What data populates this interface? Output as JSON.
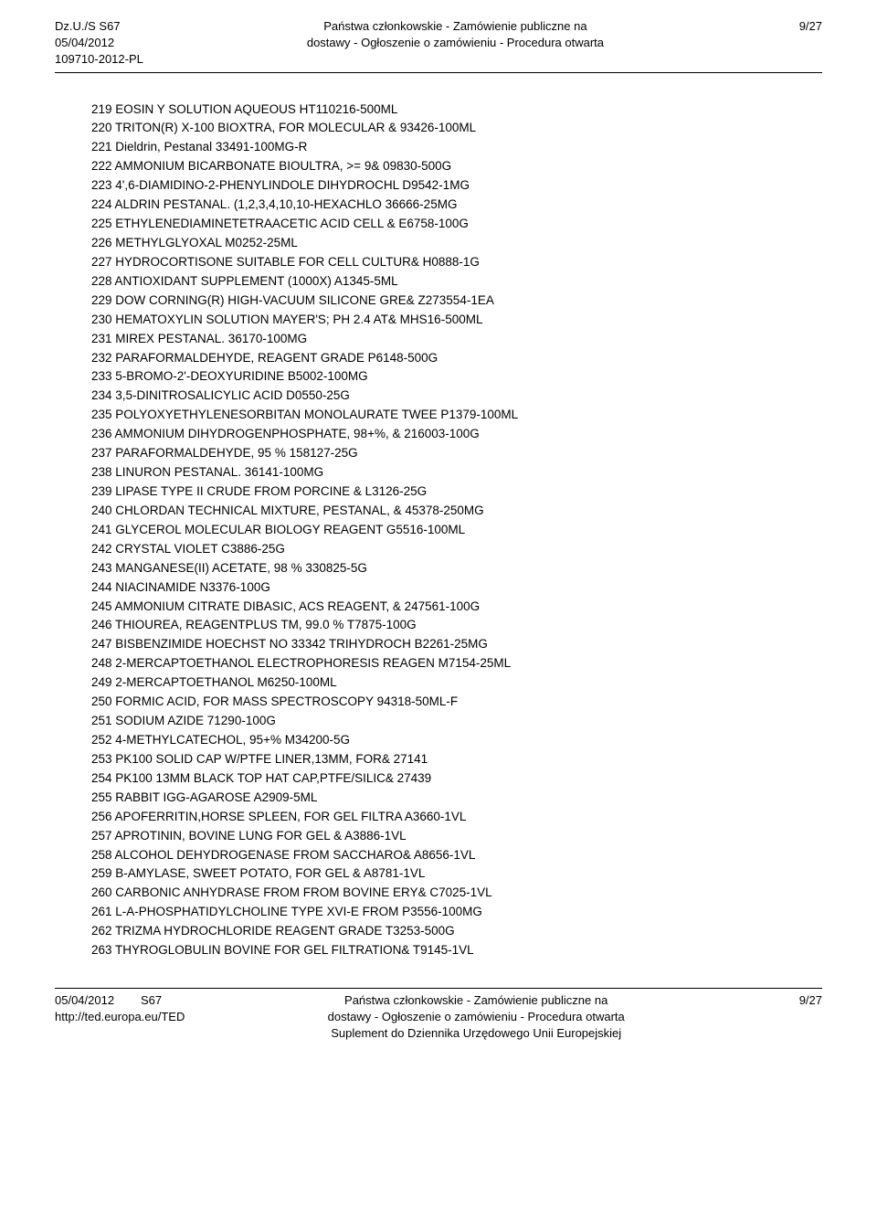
{
  "header": {
    "left_line1": "Dz.U./S S67",
    "left_line2": "05/04/2012",
    "left_line3": "109710-2012-PL",
    "center_line1": "Państwa członkowskie - Zamówienie publiczne na",
    "center_line2": "dostawy - Ogłoszenie o zamówieniu - Procedura otwarta",
    "right": "9/27"
  },
  "items": [
    {
      "n": "219",
      "t": "EOSIN Y SOLUTION AQUEOUS HT110216-500ML"
    },
    {
      "n": "220",
      "t": "TRITON(R) X-100 BIOXTRA, FOR MOLECULAR & 93426-100ML"
    },
    {
      "n": "221",
      "t": "Dieldrin, Pestanal 33491-100MG-R"
    },
    {
      "n": "222",
      "t": "AMMONIUM BICARBONATE BIOULTRA, >= 9& 09830-500G"
    },
    {
      "n": "223",
      "t": "4',6-DIAMIDINO-2-PHENYLINDOLE DIHYDROCHL D9542-1MG"
    },
    {
      "n": "224",
      "t": "ALDRIN PESTANAL. (1,2,3,4,10,10-HEXACHLO 36666-25MG"
    },
    {
      "n": "225",
      "t": "ETHYLENEDIAMINETETRAACETIC ACID CELL & E6758-100G"
    },
    {
      "n": "226",
      "t": "METHYLGLYOXAL M0252-25ML"
    },
    {
      "n": "227",
      "t": "HYDROCORTISONE SUITABLE FOR CELL CULTUR& H0888-1G"
    },
    {
      "n": "228",
      "t": "ANTIOXIDANT SUPPLEMENT (1000X) A1345-5ML"
    },
    {
      "n": "229",
      "t": "DOW CORNING(R) HIGH-VACUUM SILICONE GRE& Z273554-1EA"
    },
    {
      "n": "230",
      "t": "HEMATOXYLIN SOLUTION MAYER'S; PH 2.4 AT& MHS16-500ML"
    },
    {
      "n": "231",
      "t": "MIREX PESTANAL. 36170-100MG"
    },
    {
      "n": "232",
      "t": "PARAFORMALDEHYDE, REAGENT GRADE P6148-500G"
    },
    {
      "n": "233",
      "t": "5-BROMO-2'-DEOXYURIDINE B5002-100MG"
    },
    {
      "n": "234",
      "t": "3,5-DINITROSALICYLIC ACID D0550-25G"
    },
    {
      "n": "235",
      "t": "POLYOXYETHYLENESORBITAN MONOLAURATE TWEE P1379-100ML"
    },
    {
      "n": "236",
      "t": "AMMONIUM DIHYDROGENPHOSPHATE, 98+%, & 216003-100G"
    },
    {
      "n": "237",
      "t": "PARAFORMALDEHYDE, 95 % 158127-25G"
    },
    {
      "n": "238",
      "t": "LINURON PESTANAL. 36141-100MG"
    },
    {
      "n": "239",
      "t": "LIPASE TYPE II CRUDE FROM PORCINE & L3126-25G"
    },
    {
      "n": "240",
      "t": "CHLORDAN TECHNICAL MIXTURE, PESTANAL, & 45378-250MG"
    },
    {
      "n": "241",
      "t": "GLYCEROL MOLECULAR BIOLOGY REAGENT G5516-100ML"
    },
    {
      "n": "242",
      "t": "CRYSTAL VIOLET C3886-25G"
    },
    {
      "n": "243",
      "t": "MANGANESE(II) ACETATE, 98 % 330825-5G"
    },
    {
      "n": "244",
      "t": "NIACINAMIDE N3376-100G"
    },
    {
      "n": "245",
      "t": "AMMONIUM CITRATE DIBASIC, ACS REAGENT, & 247561-100G"
    },
    {
      "n": "246",
      "t": "THIOUREA, REAGENTPLUS TM, 99.0 % T7875-100G"
    },
    {
      "n": "247",
      "t": "BISBENZIMIDE HOECHST NO 33342 TRIHYDROCH B2261-25MG"
    },
    {
      "n": "248",
      "t": "2-MERCAPTOETHANOL ELECTROPHORESIS REAGEN M7154-25ML"
    },
    {
      "n": "249",
      "t": "2-MERCAPTOETHANOL M6250-100ML"
    },
    {
      "n": "250",
      "t": "FORMIC ACID, FOR MASS SPECTROSCOPY 94318-50ML-F"
    },
    {
      "n": "251",
      "t": "SODIUM AZIDE 71290-100G"
    },
    {
      "n": "252",
      "t": "4-METHYLCATECHOL, 95+% M34200-5G"
    },
    {
      "n": "253",
      "t": "PK100 SOLID CAP W/PTFE LINER,13MM, FOR& 27141"
    },
    {
      "n": "254",
      "t": "PK100 13MM BLACK TOP HAT CAP,PTFE/SILIC& 27439"
    },
    {
      "n": "255",
      "t": "RABBIT IGG-AGAROSE A2909-5ML"
    },
    {
      "n": "256",
      "t": "APOFERRITIN,HORSE SPLEEN, FOR GEL FILTRA A3660-1VL"
    },
    {
      "n": "257",
      "t": "APROTININ, BOVINE LUNG FOR GEL & A3886-1VL"
    },
    {
      "n": "258",
      "t": "ALCOHOL DEHYDROGENASE FROM SACCHARO& A8656-1VL"
    },
    {
      "n": "259",
      "t": "B-AMYLASE, SWEET POTATO, FOR GEL & A8781-1VL"
    },
    {
      "n": "260",
      "t": "CARBONIC ANHYDRASE FROM FROM BOVINE ERY& C7025-1VL"
    },
    {
      "n": "261",
      "t": "L-A-PHOSPHATIDYLCHOLINE TYPE XVI-E FROM P3556-100MG"
    },
    {
      "n": "262",
      "t": "TRIZMA HYDROCHLORIDE REAGENT GRADE T3253-500G"
    },
    {
      "n": "263",
      "t": "THYROGLOBULIN BOVINE FOR GEL FILTRATION& T9145-1VL"
    }
  ],
  "footer": {
    "left_line1": "05/04/2012",
    "left_line1b": "S67",
    "left_line2": "http://ted.europa.eu/TED",
    "center_line1": "Państwa członkowskie - Zamówienie publiczne na",
    "center_line2": "dostawy - Ogłoszenie o zamówieniu - Procedura otwarta",
    "center_line3": "Suplement do Dziennika Urzędowego Unii Europejskiej",
    "right": "9/27"
  }
}
